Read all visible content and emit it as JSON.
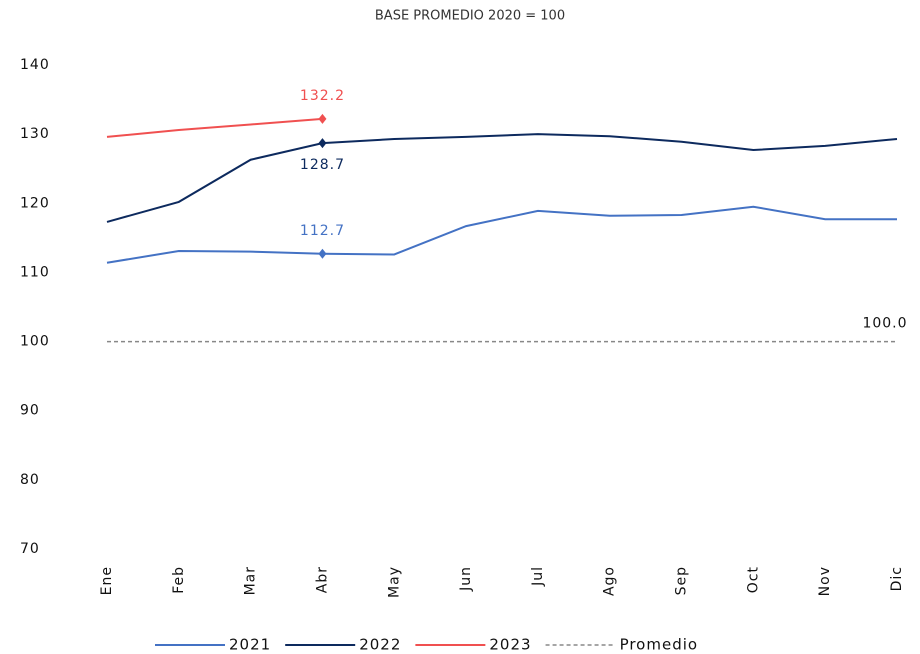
{
  "chart_data": {
    "type": "line",
    "subtitle": "BASE PROMEDIO 2020 = 100",
    "categories": [
      "Ene",
      "Feb",
      "Mar",
      "Abr",
      "May",
      "Jun",
      "Jul",
      "Ago",
      "Sep",
      "Oct",
      "Nov",
      "Dic"
    ],
    "series": [
      {
        "name": "2021",
        "color": "#4472c4",
        "values": [
          111.4,
          113.1,
          113.0,
          112.7,
          112.6,
          116.7,
          118.9,
          118.2,
          118.3,
          119.5,
          117.7,
          117.7
        ],
        "value_labels": [
          null,
          null,
          null,
          "112.7",
          null,
          null,
          null,
          null,
          null,
          null,
          null,
          null
        ]
      },
      {
        "name": "2022",
        "color": "#0d2a5e",
        "values": [
          117.3,
          120.2,
          126.3,
          128.7,
          129.3,
          129.6,
          130.0,
          129.7,
          128.9,
          127.7,
          128.3,
          129.3
        ],
        "value_labels": [
          null,
          null,
          null,
          "128.7",
          null,
          null,
          null,
          null,
          null,
          null,
          null,
          null
        ]
      },
      {
        "name": "2023",
        "color": "#f05050",
        "values": [
          129.6,
          130.6,
          131.4,
          132.2,
          null,
          null,
          null,
          null,
          null,
          null,
          null,
          null
        ],
        "value_labels": [
          null,
          null,
          null,
          "132.2",
          null,
          null,
          null,
          null,
          null,
          null,
          null,
          null
        ]
      },
      {
        "name": "Promedio",
        "color": "#888888",
        "dashed": true,
        "values": [
          100,
          100,
          100,
          100,
          100,
          100,
          100,
          100,
          100,
          100,
          100,
          100
        ],
        "value_labels": [
          null,
          null,
          null,
          null,
          null,
          null,
          null,
          null,
          null,
          null,
          null,
          "100.0"
        ]
      }
    ],
    "ylim": [
      70,
      140
    ],
    "yticks": [
      70,
      80,
      90,
      100,
      110,
      120,
      130,
      140
    ],
    "grid": false,
    "legend": "bottom"
  }
}
